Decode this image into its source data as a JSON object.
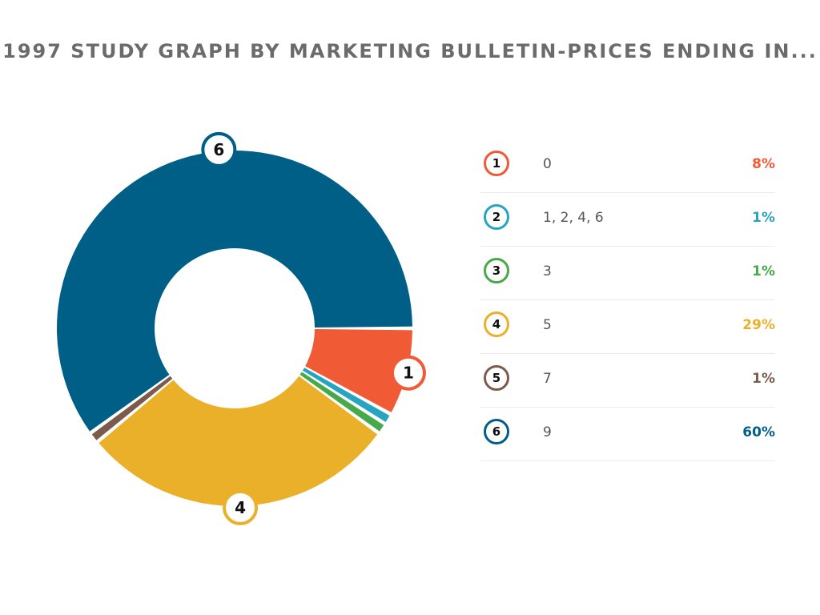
{
  "title": "1997 STUDY GRAPH BY MARKETING BULLETIN-PRICES ENDING IN...",
  "chart_data": {
    "type": "pie",
    "title": "1997 STUDY GRAPH BY MARKETING BULLETIN-PRICES ENDING IN...",
    "slices": [
      {
        "id": "1",
        "label": "0",
        "value": 8,
        "display": "8%",
        "color": "#f05a35"
      },
      {
        "id": "2",
        "label": "1, 2, 4, 6",
        "value": 1,
        "display": "1%",
        "color": "#27a4c1"
      },
      {
        "id": "3",
        "label": "3",
        "value": 1,
        "display": "1%",
        "color": "#46a94a"
      },
      {
        "id": "4",
        "label": "5",
        "value": 29,
        "display": "29%",
        "color": "#ebb02a"
      },
      {
        "id": "5",
        "label": "7",
        "value": 1,
        "display": "1%",
        "color": "#7d5b4c"
      },
      {
        "id": "6",
        "label": "9",
        "value": 60,
        "display": "60%",
        "color": "#005f86"
      }
    ],
    "labeled_slices": [
      "1",
      "4",
      "6"
    ],
    "legend_position": "right"
  }
}
